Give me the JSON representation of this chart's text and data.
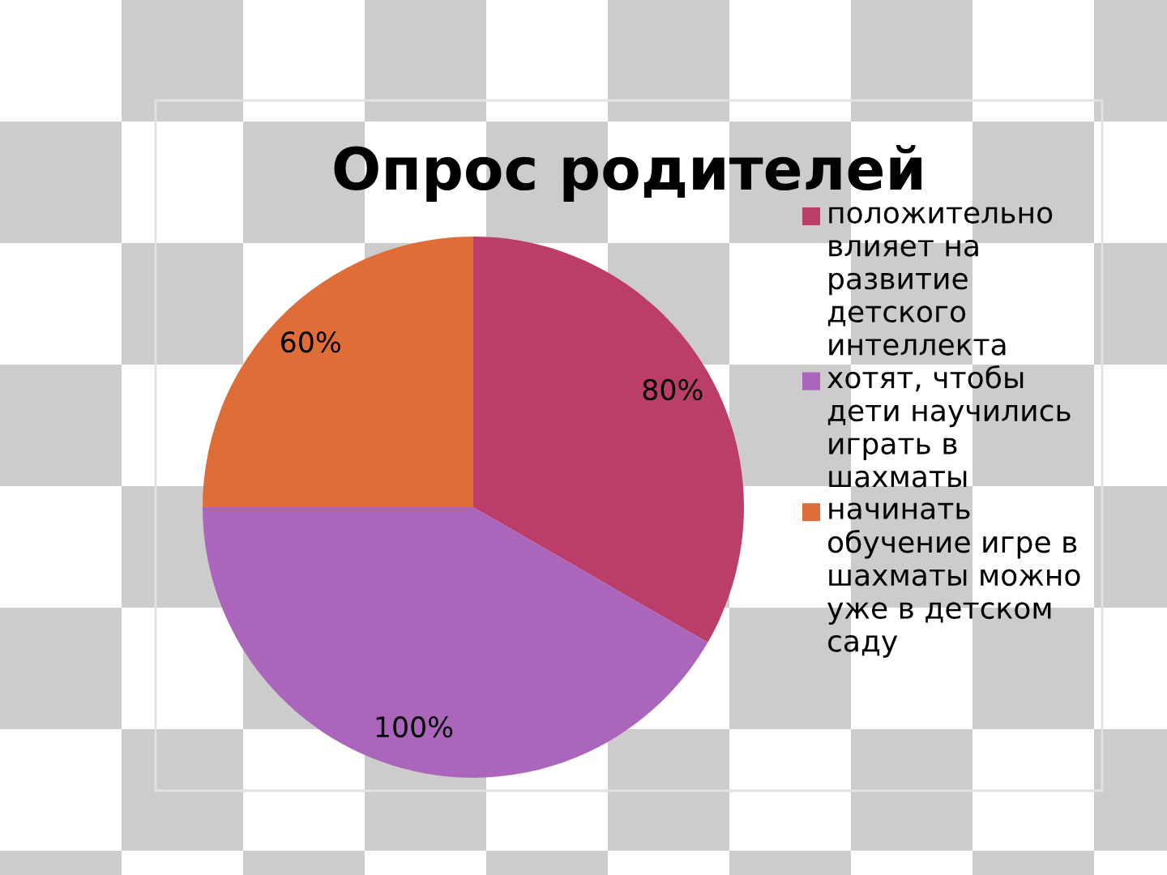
{
  "chart_data": {
    "type": "pie",
    "title": "Опрос родителей",
    "categories": [
      "положительно влияет на развитие детского интеллекта",
      "хотят, чтобы дети научились играть в шахматы",
      "начинать обучение игре в шахматы можно уже в детском саду"
    ],
    "values": [
      80,
      100,
      60
    ],
    "colors": [
      "#bb3d69",
      "#ab66bc",
      "#df6d37"
    ],
    "value_labels": [
      "80%",
      "100%",
      "60%"
    ],
    "legend": "right"
  }
}
